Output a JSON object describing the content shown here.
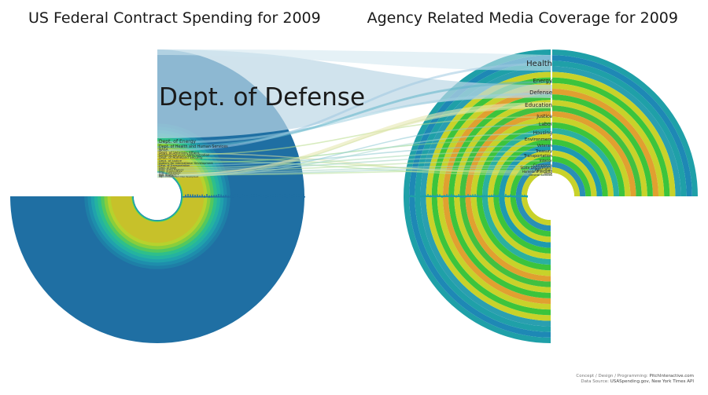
{
  "left_title": "US Federal Contract Spending for 2009",
  "right_title": "Agency Related Media Coverage for 2009",
  "left_labels": [
    "Dept. of Defense",
    "Dept. of Energy",
    "Dept. of Health and Human Services",
    "NASA",
    "Dept. of Veterans Affairs",
    "General Services Administration",
    "Dept. of Homeland Security",
    "Dept. of Justice",
    "Agency for International Development",
    "Dept. of Transportation",
    "Dept. of State",
    "Dept. of the Treasury",
    "Dept. of Agriculture",
    "Dept. of the Interior",
    "Dept. of Commerce",
    "Dept. of Labor",
    "Dept. of Education",
    "Dept. of Housing and Urban Development"
  ],
  "right_labels": [
    "Health",
    "Energy",
    "Defense",
    "Education",
    "Justice",
    "Labor",
    "Housing",
    "Environment",
    "Veteran",
    "Treasury",
    "Transportation",
    "Interior",
    "Commerce",
    "State Department",
    "Agriculture",
    "Homeland Security",
    "Space",
    "General Services"
  ],
  "colors": {
    "left_primary": "#1f6fa3",
    "right_teal": "#1fa0a8",
    "yellow": "#c8d22a",
    "green": "#3cc43c",
    "orange": "#e0a030",
    "flow_defense": "#bcd7e6"
  },
  "credits": {
    "line1_prefix": "Concept / Design / Programming:",
    "line1_name": "PitchInteractive.com",
    "line2_prefix": "Data Source:",
    "line2_name": "USASpending.gov, New York Times API"
  }
}
